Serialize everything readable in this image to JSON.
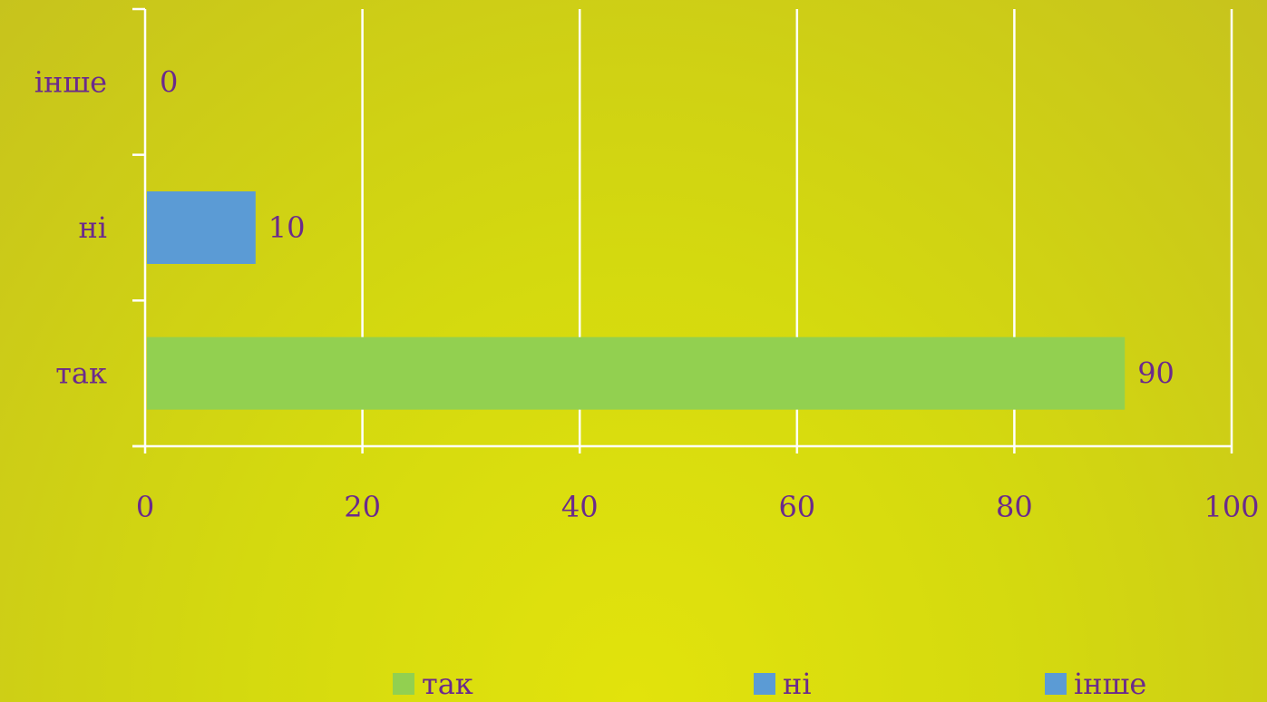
{
  "chart_data": {
    "type": "bar",
    "orientation": "horizontal",
    "categories": [
      "так",
      "ні",
      "інше"
    ],
    "values": [
      90,
      10,
      0
    ],
    "bar_colors": [
      "#92d050",
      "#5b9bd5",
      "#5b9bd5"
    ],
    "data_labels": [
      "90",
      "10",
      "0"
    ],
    "x_ticks": [
      "0",
      "20",
      "40",
      "60",
      "80",
      "100"
    ],
    "xlim": [
      0,
      100
    ],
    "grid": true,
    "legend_position": "bottom",
    "legend": [
      {
        "label": "так",
        "color": "#92d050"
      },
      {
        "label": "ні",
        "color": "#5b9bd5"
      },
      {
        "label": "інше",
        "color": "#5b9bd5"
      }
    ],
    "text_color": "#6b2a8c",
    "axis_color": "#ffffff"
  }
}
